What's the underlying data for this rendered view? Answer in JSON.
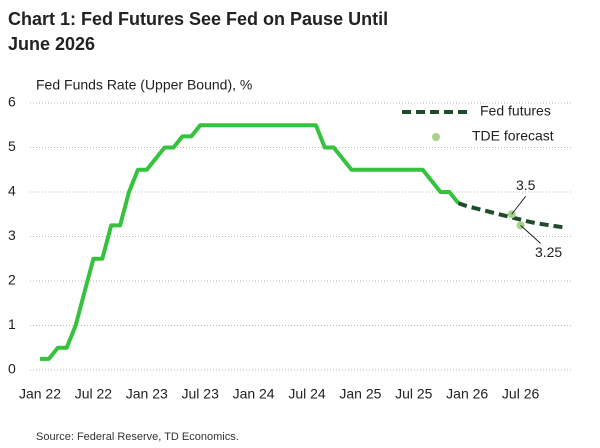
{
  "chart_data": {
    "type": "line",
    "title": [
      "Chart 1: Fed Futures See Fed on Pause Until",
      "June 2026"
    ],
    "ylabel": "Fed Funds Rate (Upper Bound), %",
    "source": "Source: Federal Reserve, TD Economics.",
    "categories": [
      "Jan 22",
      null,
      null,
      null,
      null,
      null,
      "Jul 22",
      null,
      null,
      null,
      null,
      null,
      "Jan 23",
      null,
      null,
      null,
      null,
      null,
      "Jul 23",
      null,
      null,
      null,
      null,
      null,
      "Jan 24",
      null,
      null,
      null,
      null,
      null,
      "Jul 24",
      null,
      null,
      null,
      null,
      null,
      "Jan 25",
      null,
      null,
      null,
      null,
      null,
      "Jul 25",
      null,
      null,
      null,
      null,
      null,
      "Jan 26",
      null,
      null,
      null,
      null,
      null,
      "Jul 26",
      null,
      null,
      null,
      null,
      null
    ],
    "series": [
      {
        "name": null,
        "color": "#35c23d",
        "values": [
          0.25,
          0.25,
          0.5,
          0.5,
          1.0,
          1.75,
          2.5,
          2.5,
          3.25,
          3.25,
          4.0,
          4.5,
          4.5,
          4.75,
          5.0,
          5.0,
          5.25,
          5.25,
          5.5,
          5.5,
          5.5,
          5.5,
          5.5,
          5.5,
          5.5,
          5.5,
          5.5,
          5.5,
          5.5,
          5.5,
          5.5,
          5.5,
          5.0,
          5.0,
          4.75,
          4.5,
          4.5,
          4.5,
          4.5,
          4.5,
          4.5,
          4.5,
          4.5,
          4.5,
          4.25,
          4.0,
          4.0,
          3.75,
          null,
          null,
          null,
          null,
          null,
          null,
          null,
          null,
          null,
          null,
          null,
          null
        ]
      },
      {
        "name": "Fed futures",
        "color": "#1f4a2c",
        "dash": true,
        "values": [
          null,
          null,
          null,
          null,
          null,
          null,
          null,
          null,
          null,
          null,
          null,
          null,
          null,
          null,
          null,
          null,
          null,
          null,
          null,
          null,
          null,
          null,
          null,
          null,
          null,
          null,
          null,
          null,
          null,
          null,
          null,
          null,
          null,
          null,
          null,
          null,
          null,
          null,
          null,
          null,
          null,
          null,
          null,
          null,
          null,
          null,
          null,
          3.75,
          3.68,
          3.63,
          3.58,
          3.53,
          3.48,
          3.43,
          3.38,
          3.33,
          3.29,
          3.26,
          3.23,
          3.2
        ]
      },
      {
        "name": "TDE forecast",
        "color": "#a9d18e",
        "marker": true,
        "values": [
          null,
          null,
          null,
          null,
          null,
          null,
          null,
          null,
          null,
          null,
          null,
          null,
          null,
          null,
          null,
          null,
          null,
          null,
          null,
          null,
          null,
          null,
          null,
          null,
          null,
          null,
          null,
          null,
          null,
          null,
          null,
          null,
          null,
          null,
          null,
          null,
          null,
          null,
          null,
          null,
          null,
          null,
          null,
          null,
          null,
          null,
          null,
          null,
          null,
          null,
          null,
          null,
          null,
          3.5,
          3.25,
          null,
          null,
          null,
          null,
          null
        ]
      }
    ],
    "ylim": [
      0,
      6
    ],
    "yticks": [
      0,
      1,
      2,
      3,
      4,
      5,
      6
    ],
    "grid": true,
    "legend": "top-right"
  }
}
